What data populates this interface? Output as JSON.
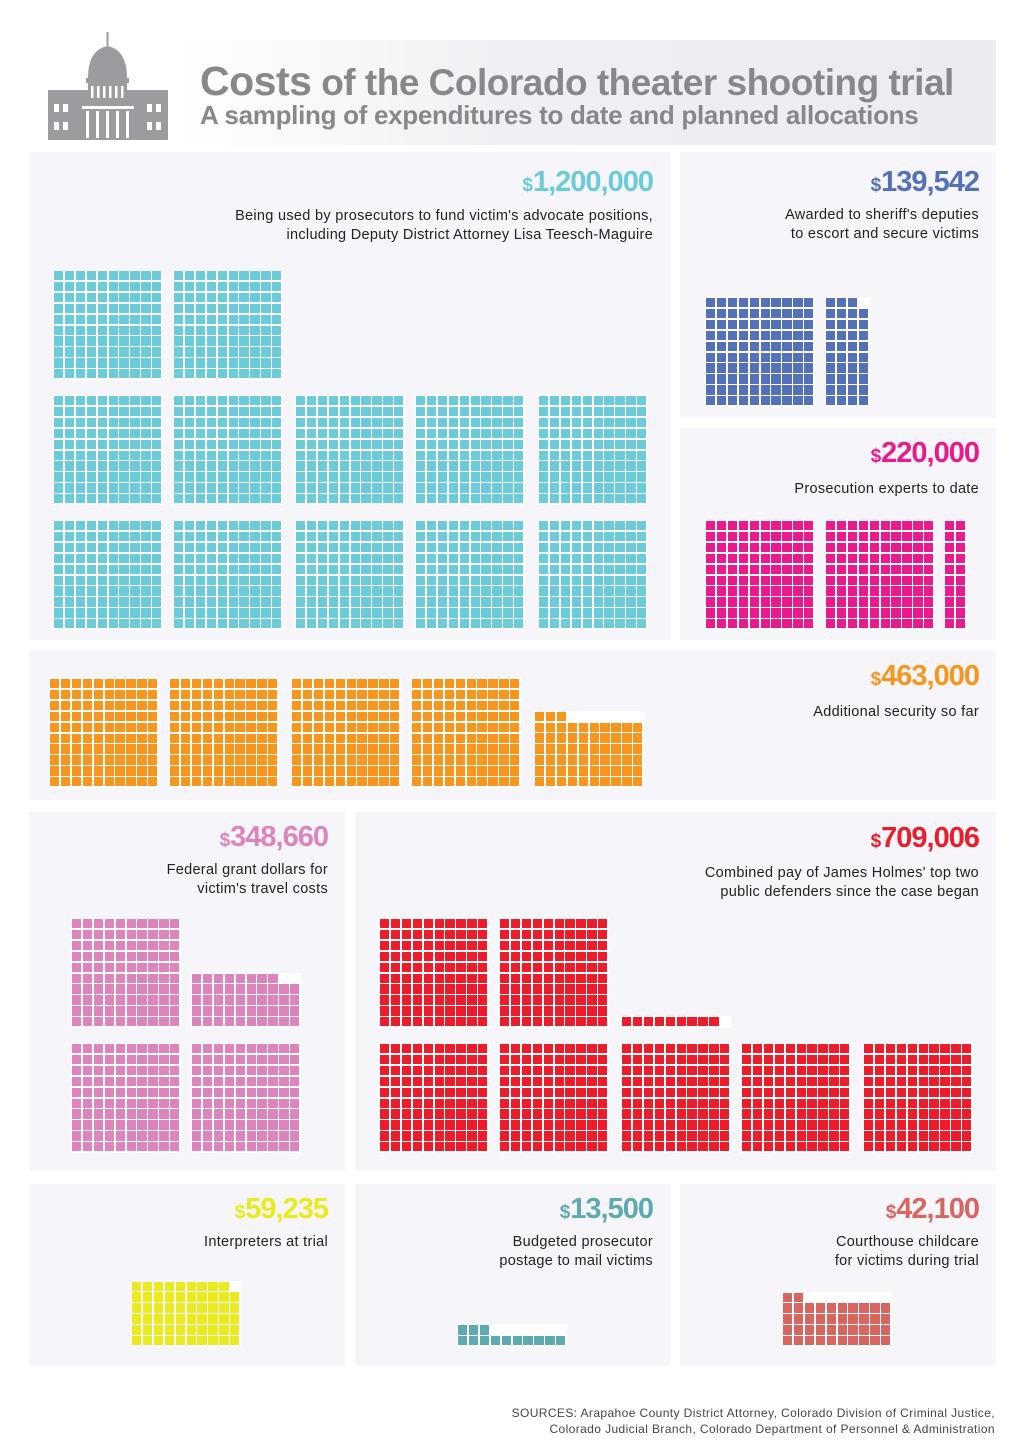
{
  "header": {
    "title_lead": "Costs",
    "title_rest": " of the Colorado theater shooting trial",
    "subtitle": "A sampling of expenditures to date and planned allocations",
    "icon": "capitol-building-icon"
  },
  "chart_data": {
    "type": "waffle",
    "title": "Costs of the Colorado theater shooting trial",
    "subtitle": "A sampling of expenditures to date and planned allocations",
    "unit_value_dollars": 1000,
    "block_size_units": 100,
    "currency_symbol": "$",
    "items": [
      {
        "amount": "1,200,000",
        "value": 1200000,
        "color": "#6ccbd8",
        "lines": [
          "Being used by prosecutors to fund victim's advocate positions,",
          "including Deputy District Attorney Lisa Teesch-Maguire"
        ]
      },
      {
        "amount": "139,542",
        "value": 139542,
        "color": "#5470b8",
        "lines": [
          "Awarded to sheriff's deputies",
          "to escort and secure victims"
        ]
      },
      {
        "amount": "220,000",
        "value": 220000,
        "color": "#ea1a8c",
        "lines": [
          "Prosecution experts to date"
        ]
      },
      {
        "amount": "463,000",
        "value": 463000,
        "color": "#f7951d",
        "lines": [
          "Additional security so far"
        ]
      },
      {
        "amount": "348,660",
        "value": 348660,
        "color": "#dc84bb",
        "lines": [
          "Federal grant dollars for",
          "victim's travel costs"
        ]
      },
      {
        "amount": "709,006",
        "value": 709006,
        "color": "#ec1c2a",
        "lines": [
          "Combined pay of James Holmes' top two",
          "public defenders since the case began"
        ]
      },
      {
        "amount": "59,235",
        "value": 59235,
        "color": "#eaea1e",
        "lines": [
          "Interpreters at trial"
        ]
      },
      {
        "amount": "13,500",
        "value": 13500,
        "color": "#5eaab2",
        "lines": [
          "Budgeted prosecutor",
          "postage to mail victims"
        ]
      },
      {
        "amount": "42,100",
        "value": 42100,
        "color": "#d6665f",
        "lines": [
          "Courthouse childcare",
          "for victims during trial"
        ]
      }
    ]
  },
  "sources": {
    "line1": "SOURCES: Arapahoe County District Attorney, Colorado Division of Criminal Justice,",
    "line2": "Colorado Judicial Branch, Colorado Department of Personnel & Administration"
  }
}
